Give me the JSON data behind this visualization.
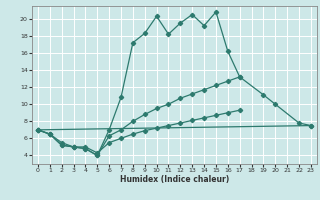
{
  "xlabel": "Humidex (Indice chaleur)",
  "background_color": "#cde8e8",
  "grid_color": "#ffffff",
  "line_color": "#2d7a6e",
  "xlim": [
    -0.5,
    23.5
  ],
  "ylim": [
    3.0,
    21.5
  ],
  "xticks": [
    0,
    1,
    2,
    3,
    4,
    5,
    6,
    7,
    8,
    9,
    10,
    11,
    12,
    13,
    14,
    15,
    16,
    17,
    18,
    19,
    20,
    21,
    22,
    23
  ],
  "yticks": [
    4,
    6,
    8,
    10,
    12,
    14,
    16,
    18,
    20
  ],
  "series1_x": [
    0,
    1,
    2,
    3,
    4,
    5,
    6,
    7,
    8,
    9,
    10,
    11,
    12,
    13,
    14,
    15,
    16,
    17,
    19,
    20,
    22,
    23
  ],
  "series1_y": [
    7,
    6.5,
    5.2,
    5.0,
    4.8,
    4.0,
    7.0,
    10.8,
    17.2,
    18.3,
    20.3,
    18.2,
    19.5,
    20.5,
    19.2,
    20.8,
    16.2,
    13.2,
    11.1,
    10.0,
    7.8,
    7.5
  ],
  "series2_x": [
    0,
    1,
    2,
    3,
    4,
    5,
    6,
    7,
    8,
    9,
    10,
    11,
    12,
    13,
    14,
    15,
    16,
    17
  ],
  "series2_y": [
    7,
    6.5,
    5.2,
    5.0,
    4.8,
    4.0,
    6.3,
    7.0,
    8.0,
    8.8,
    9.5,
    10.0,
    10.7,
    11.2,
    11.7,
    12.2,
    12.7,
    13.2
  ],
  "series3_x": [
    0,
    23
  ],
  "series3_y": [
    7.0,
    7.5
  ],
  "series4_x": [
    0,
    1,
    2,
    3,
    4,
    5,
    6,
    7,
    8,
    9,
    10,
    11,
    12,
    13,
    14,
    15,
    16,
    17
  ],
  "series4_y": [
    7,
    6.5,
    5.5,
    5.0,
    5.0,
    4.3,
    5.5,
    6.0,
    6.5,
    6.9,
    7.2,
    7.5,
    7.8,
    8.1,
    8.4,
    8.7,
    9.0,
    9.3
  ]
}
